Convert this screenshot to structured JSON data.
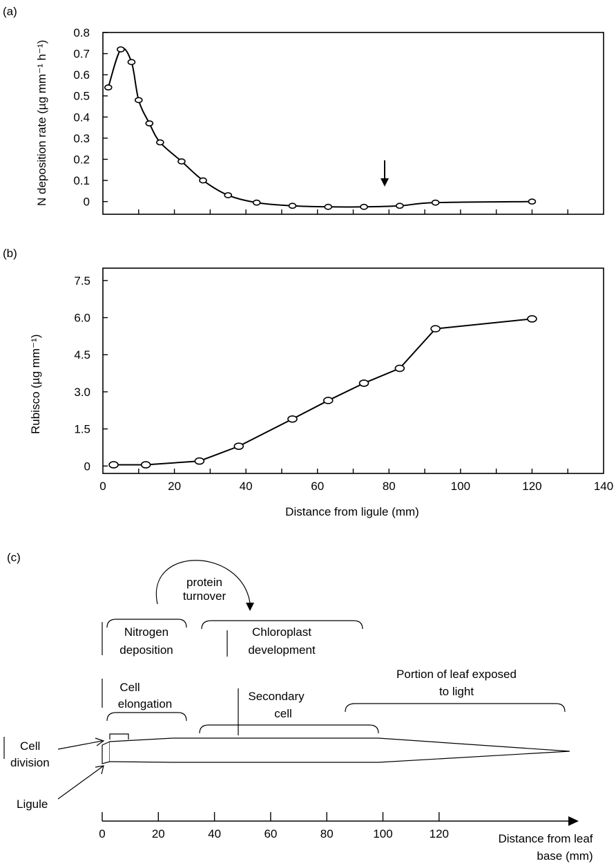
{
  "chart_data": [
    {
      "panel": "(a)",
      "type": "line",
      "ylabel": "N deposition rate (µg mm⁻¹ h⁻¹)",
      "ylim": [
        -0.06,
        0.8
      ],
      "xlim": [
        0,
        140
      ],
      "yticks": [
        "0",
        "0.1",
        "0.2",
        "0.3",
        "0.4",
        "0.5",
        "0.6",
        "0.7",
        "0.8"
      ],
      "ytick_values": [
        0,
        0.1,
        0.2,
        0.3,
        0.4,
        0.5,
        0.6,
        0.7,
        0.8
      ],
      "xticks_labeled": false,
      "x": [
        1.5,
        5,
        8,
        10,
        13,
        16,
        22,
        28,
        35,
        43,
        53,
        63,
        73,
        83,
        93,
        120
      ],
      "values": [
        0.54,
        0.72,
        0.66,
        0.48,
        0.37,
        0.28,
        0.19,
        0.1,
        0.03,
        -0.005,
        -0.02,
        -0.025,
        -0.025,
        -0.02,
        -0.005,
        0
      ],
      "annotation": "arrow at x = 80"
    },
    {
      "panel": "(b)",
      "type": "line",
      "ylabel": "Rubisco (µg mm⁻¹)",
      "xlabel": "Distance from ligule (mm)",
      "ylim": [
        -0.3,
        8.0
      ],
      "xlim": [
        0,
        140
      ],
      "yticks": [
        "0",
        "1.5",
        "3.0",
        "4.5",
        "6.0",
        "7.5"
      ],
      "ytick_values": [
        0,
        1.5,
        3.0,
        4.5,
        6.0,
        7.5
      ],
      "xticks": [
        "0",
        "20",
        "40",
        "60",
        "80",
        "100",
        "120",
        "140"
      ],
      "xtick_values": [
        0,
        20,
        40,
        60,
        80,
        100,
        120,
        140
      ],
      "x": [
        3,
        12,
        27,
        38,
        53,
        63,
        73,
        83,
        93,
        120
      ],
      "values": [
        0.05,
        0.05,
        0.2,
        0.8,
        1.9,
        2.65,
        3.35,
        3.95,
        5.55,
        5.95
      ]
    }
  ],
  "diagram": {
    "panel": "(c)",
    "protein_turnover": [
      "protein",
      "turnover"
    ],
    "nitrogen_deposition": [
      "Nitrogen",
      "deposition"
    ],
    "chloroplast_development": [
      "Chloroplast",
      "development"
    ],
    "cell_elongation": [
      "Cell",
      "elongation"
    ],
    "secondary_cell": [
      "Secondary",
      "cell"
    ],
    "light_portion": [
      "Portion of leaf exposed",
      "to light"
    ],
    "cell_division": [
      "Cell",
      "division"
    ],
    "ligule": "Ligule",
    "axis_ticks": [
      "0",
      "20",
      "40",
      "60",
      "80",
      "100",
      "120"
    ],
    "axis_title": [
      "Distance from leaf",
      "base (mm)"
    ]
  }
}
